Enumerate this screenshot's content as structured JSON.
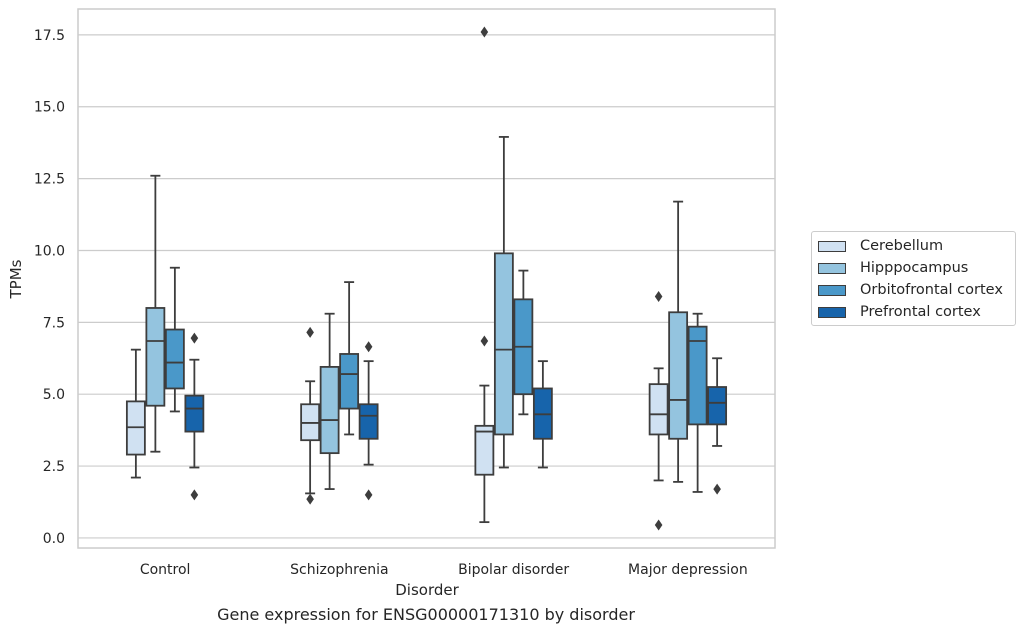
{
  "caption": "Gene expression for ENSG00000171310 by disorder",
  "chart_data": {
    "type": "box",
    "xlabel": "Disorder",
    "ylabel": "TPMs",
    "ylim": [
      -0.35,
      18.4
    ],
    "yticks": [
      "0.0",
      "2.5",
      "5.0",
      "7.5",
      "10.0",
      "12.5",
      "15.0",
      "17.5"
    ],
    "grid": "horizontal",
    "legend_position": "right",
    "categories": [
      "Control",
      "Schizophrenia",
      "Bipolar disorder",
      "Major depression"
    ],
    "series": [
      {
        "name": "Cerebellum",
        "color": "#d0e1f2",
        "boxes": [
          {
            "min": 2.1,
            "q1": 2.9,
            "median": 3.85,
            "q3": 4.75,
            "max": 6.55,
            "outliers": []
          },
          {
            "min": 1.55,
            "q1": 3.4,
            "median": 4.0,
            "q3": 4.65,
            "max": 5.45,
            "outliers": [
              1.35,
              7.15
            ]
          },
          {
            "min": 0.55,
            "q1": 2.2,
            "median": 3.7,
            "q3": 3.9,
            "max": 5.3,
            "outliers": [
              6.85,
              17.6
            ]
          },
          {
            "min": 2.0,
            "q1": 3.6,
            "median": 4.3,
            "q3": 5.35,
            "max": 5.9,
            "outliers": [
              0.45,
              8.4
            ]
          }
        ]
      },
      {
        "name": "Hipppocampus",
        "color": "#94c4df",
        "boxes": [
          {
            "min": 3.0,
            "q1": 4.6,
            "median": 6.85,
            "q3": 8.0,
            "max": 12.6,
            "outliers": []
          },
          {
            "min": 1.7,
            "q1": 2.95,
            "median": 4.1,
            "q3": 5.95,
            "max": 7.8,
            "outliers": []
          },
          {
            "min": 2.45,
            "q1": 3.6,
            "median": 6.55,
            "q3": 9.9,
            "max": 13.95,
            "outliers": []
          },
          {
            "min": 1.95,
            "q1": 3.45,
            "median": 4.8,
            "q3": 7.85,
            "max": 11.7,
            "outliers": []
          }
        ]
      },
      {
        "name": "Orbitofrontal cortex",
        "color": "#4a98c9",
        "boxes": [
          {
            "min": 4.4,
            "q1": 5.2,
            "median": 6.1,
            "q3": 7.25,
            "max": 9.4,
            "outliers": []
          },
          {
            "min": 3.6,
            "q1": 4.5,
            "median": 5.7,
            "q3": 6.4,
            "max": 8.9,
            "outliers": []
          },
          {
            "min": 4.3,
            "q1": 5.0,
            "median": 6.65,
            "q3": 8.3,
            "max": 9.3,
            "outliers": []
          },
          {
            "min": 1.6,
            "q1": 3.95,
            "median": 6.85,
            "q3": 7.35,
            "max": 7.8,
            "outliers": []
          }
        ]
      },
      {
        "name": "Prefrontal cortex",
        "color": "#1764ab",
        "boxes": [
          {
            "min": 2.45,
            "q1": 3.7,
            "median": 4.5,
            "q3": 4.95,
            "max": 6.2,
            "outliers": [
              1.5,
              6.95
            ]
          },
          {
            "min": 2.55,
            "q1": 3.45,
            "median": 4.25,
            "q3": 4.65,
            "max": 6.15,
            "outliers": [
              1.5,
              6.65
            ]
          },
          {
            "min": 2.45,
            "q1": 3.45,
            "median": 4.3,
            "q3": 5.2,
            "max": 6.15,
            "outliers": []
          },
          {
            "min": 3.2,
            "q1": 3.95,
            "median": 4.7,
            "q3": 5.25,
            "max": 6.25,
            "outliers": [
              1.7
            ]
          }
        ]
      }
    ]
  }
}
